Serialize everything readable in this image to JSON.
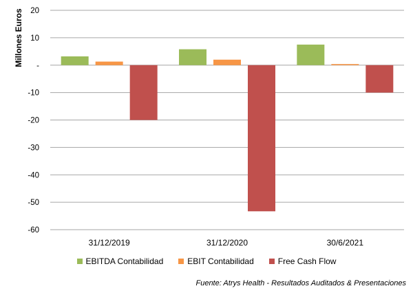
{
  "chart_data": {
    "type": "bar",
    "ylabel": "Millones Euros",
    "ylim": [
      -60,
      20
    ],
    "yticks": [
      20,
      10,
      0,
      -10,
      -20,
      -30,
      -40,
      -50,
      -60
    ],
    "ytick_labels": [
      "20",
      "10",
      "-",
      "-10",
      "-20",
      "-30",
      "-40",
      "-50",
      "-60"
    ],
    "grid": true,
    "legend_position": "bottom",
    "categories": [
      "31/12/2019",
      "31/12/2020",
      "30/6/2021"
    ],
    "series": [
      {
        "name": "EBITDA Contabilidad",
        "color": "#9bbb59",
        "values": [
          3.2,
          5.8,
          7.5
        ]
      },
      {
        "name": "EBIT Contabilidad",
        "color": "#f79646",
        "values": [
          1.3,
          2.0,
          0.4
        ]
      },
      {
        "name": "Free Cash Flow",
        "color": "#c0504d",
        "values": [
          -20,
          -53.3,
          -10
        ]
      }
    ],
    "source": "Fuente: Atrys Health - Resultados Auditados & Presentaciones"
  }
}
